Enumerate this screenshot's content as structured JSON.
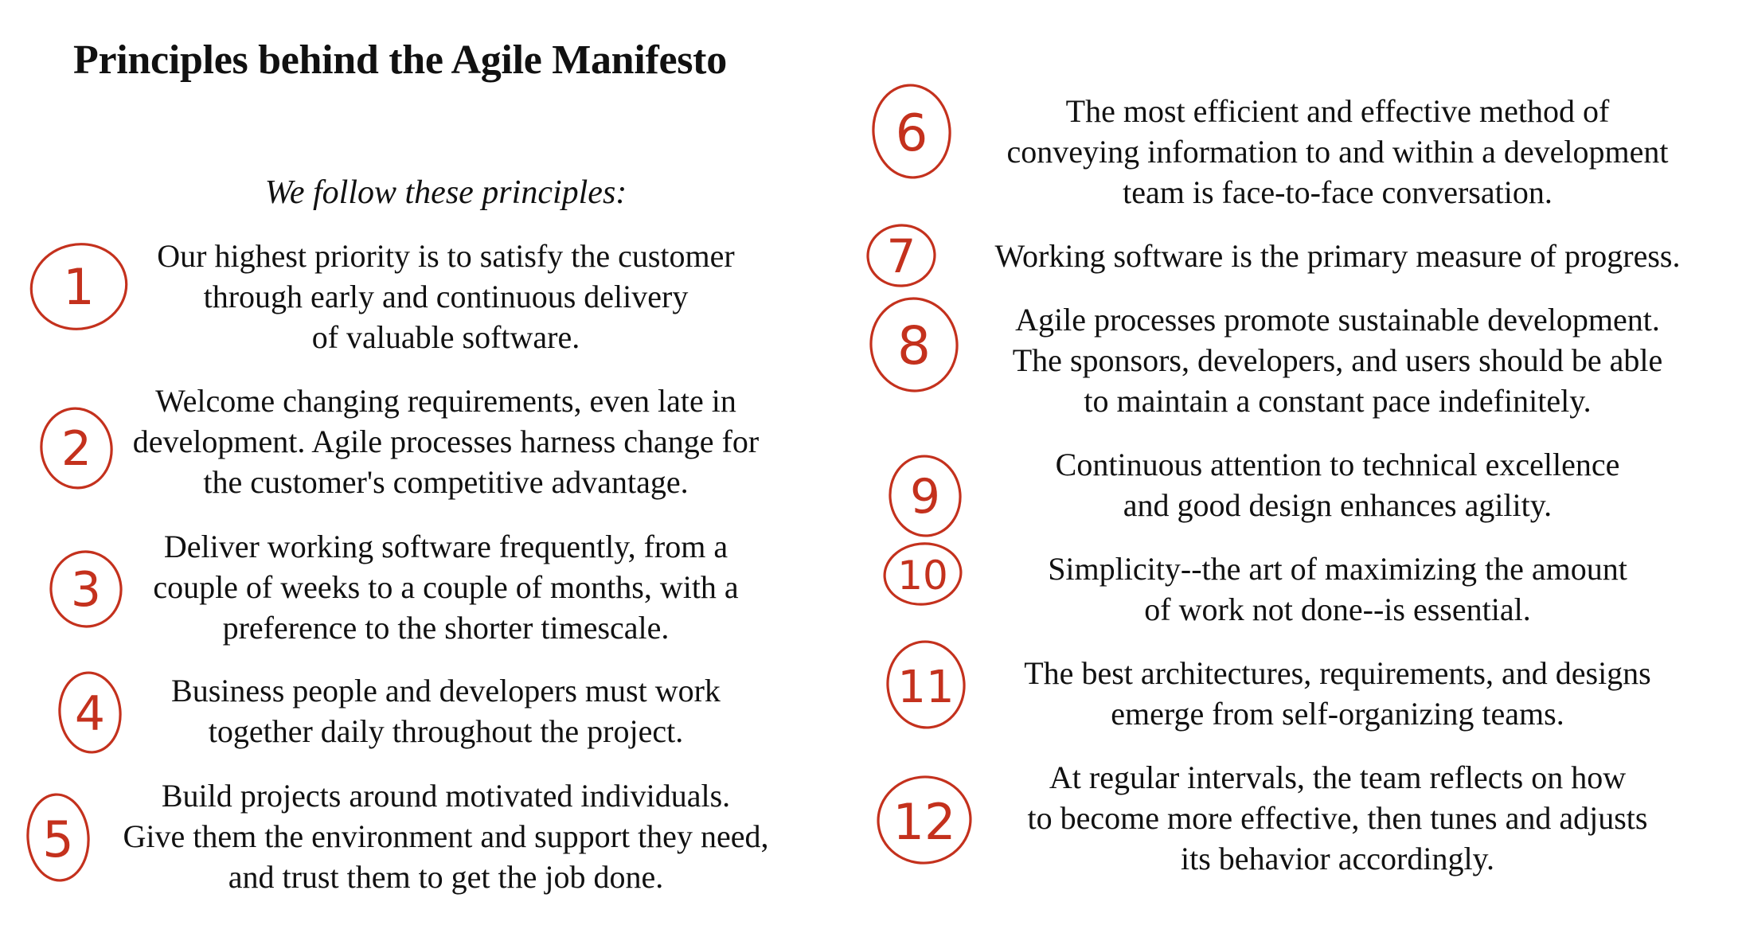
{
  "title": "Principles behind the Agile Manifesto",
  "intro": "We follow these principles:",
  "annotation_color": "#c4311d",
  "principles": [
    {
      "number": "1",
      "lines": [
        "Our highest priority is to satisfy the customer",
        "through early and continuous delivery",
        "of valuable software."
      ]
    },
    {
      "number": "2",
      "lines": [
        "Welcome changing requirements, even late in",
        "development. Agile processes harness change for",
        "the customer's competitive advantage."
      ]
    },
    {
      "number": "3",
      "lines": [
        "Deliver working software frequently, from a",
        "couple of weeks to a couple of months, with a",
        "preference to the shorter timescale."
      ]
    },
    {
      "number": "4",
      "lines": [
        "Business people and developers must work",
        "together daily throughout the project."
      ]
    },
    {
      "number": "5",
      "lines": [
        "Build projects around motivated individuals.",
        "Give them the environment and support they need,",
        "and trust them to get the job done."
      ]
    },
    {
      "number": "6",
      "lines": [
        "The most efficient and effective method of",
        "conveying information to and within a development",
        "team is face-to-face conversation."
      ]
    },
    {
      "number": "7",
      "lines": [
        "Working software is the primary measure of progress."
      ]
    },
    {
      "number": "8",
      "lines": [
        "Agile processes promote sustainable development.",
        "The sponsors, developers, and users should be able",
        "to maintain a constant pace indefinitely."
      ]
    },
    {
      "number": "9",
      "lines": [
        "Continuous attention to technical excellence",
        "and good design enhances agility."
      ]
    },
    {
      "number": "10",
      "lines": [
        "Simplicity--the art of maximizing the amount",
        "of work not done--is essential."
      ]
    },
    {
      "number": "11",
      "lines": [
        "The best architectures, requirements, and designs",
        "emerge from self-organizing teams."
      ]
    },
    {
      "number": "12",
      "lines": [
        "At regular intervals, the team reflects on how",
        "to become more effective, then tunes and adjusts",
        "its behavior accordingly."
      ]
    }
  ]
}
